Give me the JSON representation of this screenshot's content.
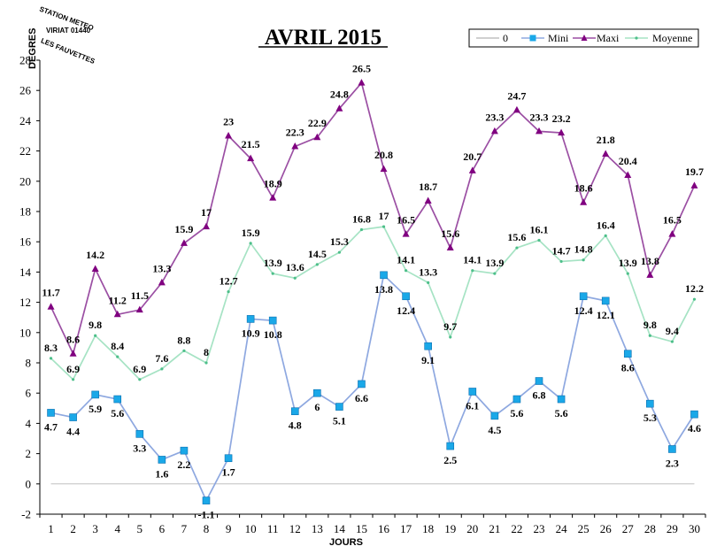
{
  "chart_data": {
    "type": "line",
    "title": "AVRIL 2015",
    "xlabel": "JOURS",
    "ylabel": "DEGRES",
    "ylim": [
      -2,
      28
    ],
    "yticks": [
      -2,
      0,
      2,
      4,
      6,
      8,
      10,
      12,
      14,
      16,
      18,
      20,
      22,
      24,
      26,
      28
    ],
    "x": [
      1,
      2,
      3,
      4,
      5,
      6,
      7,
      8,
      9,
      10,
      11,
      12,
      13,
      14,
      15,
      16,
      17,
      18,
      19,
      20,
      21,
      22,
      23,
      24,
      25,
      26,
      27,
      28,
      29,
      30
    ],
    "x_tick_labels": [
      "1",
      "2",
      "3",
      "4",
      "5",
      "6",
      "7",
      "8",
      "9",
      "10",
      "11",
      "12",
      "13",
      "14",
      "15",
      "16",
      "17",
      "18",
      "19",
      "20",
      "21",
      "22",
      "23",
      "24",
      "25",
      "26",
      "27",
      "28",
      "29",
      "30"
    ],
    "legend_position": "top-right",
    "grid": false,
    "series": [
      {
        "name": "0",
        "color": "#c0c0c0",
        "marker": "none",
        "values": [
          0,
          0,
          0,
          0,
          0,
          0,
          0,
          0,
          0,
          0,
          0,
          0,
          0,
          0,
          0,
          0,
          0,
          0,
          0,
          0,
          0,
          0,
          0,
          0,
          0,
          0,
          0,
          0,
          0,
          0
        ]
      },
      {
        "name": "Mini",
        "color": "#8ea8e0",
        "marker": "square",
        "marker_color": "#1aa8e8",
        "values": [
          4.7,
          4.4,
          5.9,
          5.6,
          3.3,
          1.6,
          2.2,
          -1.1,
          1.7,
          10.9,
          10.8,
          4.8,
          6,
          5.1,
          6.6,
          13.8,
          12.4,
          9.1,
          2.5,
          6.1,
          4.5,
          5.6,
          6.8,
          5.6,
          12.4,
          12.1,
          8.6,
          5.3,
          2.3,
          4.6
        ]
      },
      {
        "name": "Maxi",
        "color": "#9b4fa3",
        "marker": "triangle",
        "marker_color": "#800080",
        "values": [
          11.7,
          8.6,
          14.2,
          11.2,
          11.5,
          13.3,
          15.9,
          17,
          23,
          21.5,
          18.9,
          22.3,
          22.9,
          24.8,
          26.5,
          20.8,
          16.5,
          18.7,
          15.6,
          20.7,
          23.3,
          24.7,
          23.3,
          23.2,
          18.6,
          21.8,
          20.4,
          13.8,
          16.5,
          19.7
        ]
      },
      {
        "name": "Moyenne",
        "color": "#a6e3c4",
        "marker": "dot",
        "marker_color": "#4dbf8a",
        "values": [
          8.3,
          6.9,
          9.8,
          8.4,
          6.9,
          7.6,
          8.8,
          8,
          12.7,
          15.9,
          13.9,
          13.6,
          14.5,
          15.3,
          16.8,
          17,
          14.1,
          13.3,
          9.7,
          14.1,
          13.9,
          15.6,
          16.1,
          14.7,
          14.8,
          16.4,
          13.9,
          9.8,
          9.4,
          12.2
        ]
      }
    ]
  },
  "stamp": {
    "line1": "STATION METEO",
    "line2": "VIRIAT 01440",
    "line3": "LES FAUVETTES"
  }
}
